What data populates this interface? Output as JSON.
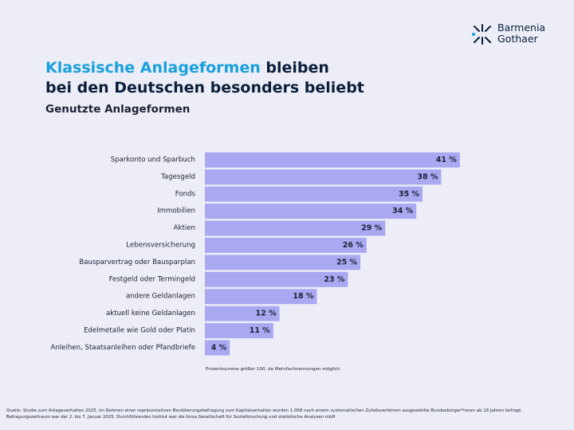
{
  "logo": {
    "line1": "Barmenia",
    "line2": "Gothaer"
  },
  "title": {
    "accent": "Klassische Anlageformen",
    "rest_line1": " bleiben",
    "line2": "bei den Deutschen besonders beliebt"
  },
  "subtitle": "Genutzte Anlageformen",
  "note": "Prozentsumme größer 100, da Mehrfachnennungen möglich",
  "source": "Quelle: Studie zum Anlageverhalten 2025. Im Rahmen einer repräsentativen Bevölkerungsbefragung zum Kapitalverhalten wurden 1.008 nach einem systematischen Zufallsverfahren ausgewählte Bundesbürger*innen ab 18 Jahren befragt. Befragungszeitraum war der 2. bis 7. Januar 2025. Durchführendes Institut war die forsa Gesellschaft für Sozialforschung und statistische Analysen mbH",
  "colors": {
    "background": "#ecedf7",
    "bar": "#a9a8f1",
    "accent": "#19a0dc",
    "text": "#1b2235"
  },
  "chart_data": {
    "type": "bar",
    "orientation": "horizontal",
    "title": "Genutzte Anlageformen",
    "unit": "%",
    "xlim": [
      0,
      45
    ],
    "grid": false,
    "legend": "none",
    "categories": [
      "Sparkonto und Sparbuch",
      "Tagesgeld",
      "Fonds",
      "Immobilien",
      "Aktien",
      "Lebensversicherung",
      "Bausparvertrag oder Bausparplan",
      "Festgeld oder Termingeld",
      "andere Geldanlagen",
      "aktuell keine Geldanlagen",
      "Edelmetalle wie Gold oder Platin",
      "Anleihen, Staatsanleihen oder Pfandbriefe"
    ],
    "values": [
      41,
      38,
      35,
      34,
      29,
      26,
      25,
      23,
      18,
      12,
      11,
      4
    ],
    "value_labels": [
      "41 %",
      "38 %",
      "35 %",
      "34 %",
      "29 %",
      "26 %",
      "25 %",
      "23 %",
      "18 %",
      "12 %",
      "11 %",
      "4 %"
    ]
  }
}
